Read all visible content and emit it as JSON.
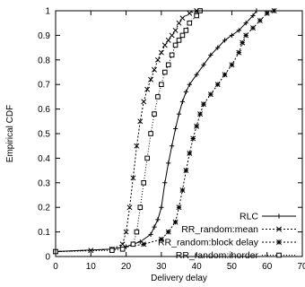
{
  "chart_data": {
    "type": "line",
    "xlabel": "Delivery delay",
    "ylabel": "Empirical CDF",
    "xlim": [
      0,
      70
    ],
    "ylim": [
      0,
      1
    ],
    "xticks": [
      "0",
      "10",
      "20",
      "30",
      "40",
      "50",
      "60",
      "70"
    ],
    "yticks": [
      "0",
      "0.1",
      "0.2",
      "0.3",
      "0.4",
      "0.5",
      "0.6",
      "0.7",
      "0.8",
      "0.9",
      "1"
    ],
    "legend_position": "bottom-right",
    "series": [
      {
        "name": "RLC",
        "color": "#000000",
        "dash": "",
        "marker": "plus",
        "points": [
          [
            0,
            0.02
          ],
          [
            16,
            0.03
          ],
          [
            20,
            0.04
          ],
          [
            24,
            0.06
          ],
          [
            27,
            0.09
          ],
          [
            28,
            0.12
          ],
          [
            29,
            0.15
          ],
          [
            30,
            0.2
          ],
          [
            31,
            0.3
          ],
          [
            32,
            0.38
          ],
          [
            33,
            0.45
          ],
          [
            34,
            0.52
          ],
          [
            35,
            0.58
          ],
          [
            36,
            0.63
          ],
          [
            37,
            0.67
          ],
          [
            38,
            0.7
          ],
          [
            40,
            0.74
          ],
          [
            42,
            0.78
          ],
          [
            44,
            0.82
          ],
          [
            46,
            0.85
          ],
          [
            48,
            0.88
          ],
          [
            50,
            0.9
          ],
          [
            52,
            0.92
          ],
          [
            54,
            0.95
          ],
          [
            56,
            0.98
          ],
          [
            57,
            1.0
          ]
        ]
      },
      {
        "name": "RR_random:mean",
        "color": "#000000",
        "dash": "2,2",
        "marker": "x",
        "points": [
          [
            0,
            0.02
          ],
          [
            10,
            0.025
          ],
          [
            16,
            0.03
          ],
          [
            19,
            0.05
          ],
          [
            20,
            0.1
          ],
          [
            21,
            0.2
          ],
          [
            22,
            0.32
          ],
          [
            23,
            0.45
          ],
          [
            24,
            0.55
          ],
          [
            25,
            0.63
          ],
          [
            26,
            0.68
          ],
          [
            27,
            0.72
          ],
          [
            28,
            0.76
          ],
          [
            29,
            0.8
          ],
          [
            30,
            0.83
          ],
          [
            31,
            0.86
          ],
          [
            32,
            0.88
          ],
          [
            33,
            0.9
          ],
          [
            34,
            0.92
          ],
          [
            35,
            0.95
          ],
          [
            36,
            0.97
          ],
          [
            38,
            0.99
          ],
          [
            40,
            1.0
          ]
        ]
      },
      {
        "name": "RR_random:block delay",
        "color": "#000000",
        "dash": "2,2",
        "marker": "star",
        "points": [
          [
            0,
            0.02
          ],
          [
            16,
            0.03
          ],
          [
            25,
            0.05
          ],
          [
            30,
            0.07
          ],
          [
            32,
            0.1
          ],
          [
            34,
            0.14
          ],
          [
            35,
            0.2
          ],
          [
            36,
            0.27
          ],
          [
            37,
            0.35
          ],
          [
            38,
            0.42
          ],
          [
            39,
            0.48
          ],
          [
            40,
            0.53
          ],
          [
            41,
            0.58
          ],
          [
            42,
            0.62
          ],
          [
            44,
            0.66
          ],
          [
            46,
            0.7
          ],
          [
            48,
            0.74
          ],
          [
            50,
            0.78
          ],
          [
            52,
            0.83
          ],
          [
            53,
            0.87
          ],
          [
            54,
            0.9
          ],
          [
            56,
            0.93
          ],
          [
            58,
            0.96
          ],
          [
            60,
            0.99
          ],
          [
            62,
            1.0
          ]
        ]
      },
      {
        "name": "RR_random:inorder",
        "color": "#000000",
        "dash": "1,2",
        "marker": "square",
        "points": [
          [
            0,
            0.02
          ],
          [
            16,
            0.025
          ],
          [
            19,
            0.03
          ],
          [
            22,
            0.05
          ],
          [
            23,
            0.1
          ],
          [
            24,
            0.2
          ],
          [
            25,
            0.3
          ],
          [
            26,
            0.4
          ],
          [
            27,
            0.5
          ],
          [
            28,
            0.58
          ],
          [
            29,
            0.65
          ],
          [
            30,
            0.7
          ],
          [
            31,
            0.75
          ],
          [
            32,
            0.78
          ],
          [
            33,
            0.82
          ],
          [
            34,
            0.86
          ],
          [
            35,
            0.88
          ],
          [
            36,
            0.9
          ],
          [
            37,
            0.92
          ],
          [
            38,
            0.95
          ],
          [
            40,
            0.98
          ],
          [
            41,
            1.0
          ]
        ]
      }
    ]
  }
}
